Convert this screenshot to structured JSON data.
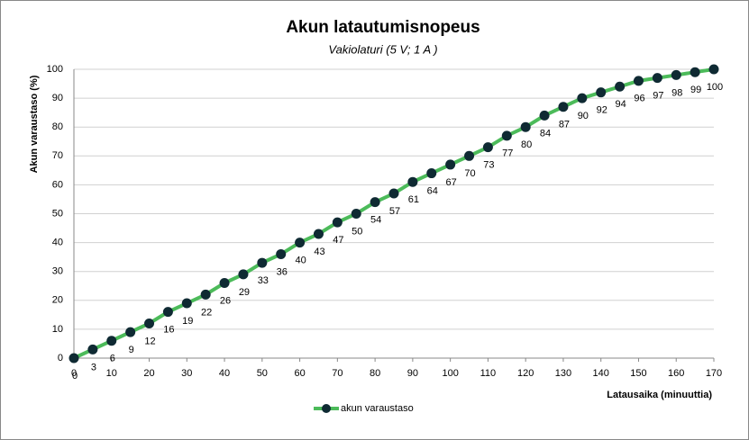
{
  "chart_data": {
    "type": "line",
    "title": "Akun latautumisnopeus",
    "subtitle": "Vakiolaturi (5 V; 1 A )",
    "x_label": "Latausaika  (minuuttia)",
    "y_label": "Akun varaustaso  (%)",
    "x": [
      0,
      5,
      10,
      15,
      20,
      25,
      30,
      35,
      40,
      45,
      50,
      55,
      60,
      65,
      70,
      75,
      80,
      85,
      90,
      95,
      100,
      105,
      110,
      115,
      120,
      125,
      130,
      135,
      140,
      145,
      150,
      155,
      160,
      165,
      170
    ],
    "series": [
      {
        "name": "akun varaustaso",
        "color": "#4cbb5a",
        "marker_color": "#0f2a33",
        "values": [
          0,
          3,
          6,
          9,
          12,
          16,
          19,
          22,
          26,
          29,
          33,
          36,
          40,
          43,
          47,
          50,
          54,
          57,
          61,
          64,
          67,
          70,
          73,
          77,
          80,
          84,
          87,
          90,
          92,
          94,
          96,
          97,
          98,
          99,
          100
        ]
      }
    ],
    "xlim": [
      0,
      170
    ],
    "xticks": [
      0,
      10,
      20,
      30,
      40,
      50,
      60,
      70,
      80,
      90,
      100,
      110,
      120,
      130,
      140,
      150,
      160,
      170
    ],
    "ylim": [
      0,
      100
    ],
    "yticks": [
      0,
      10,
      20,
      30,
      40,
      50,
      60,
      70,
      80,
      90,
      100
    ],
    "grid": true,
    "legend": "bottom"
  }
}
